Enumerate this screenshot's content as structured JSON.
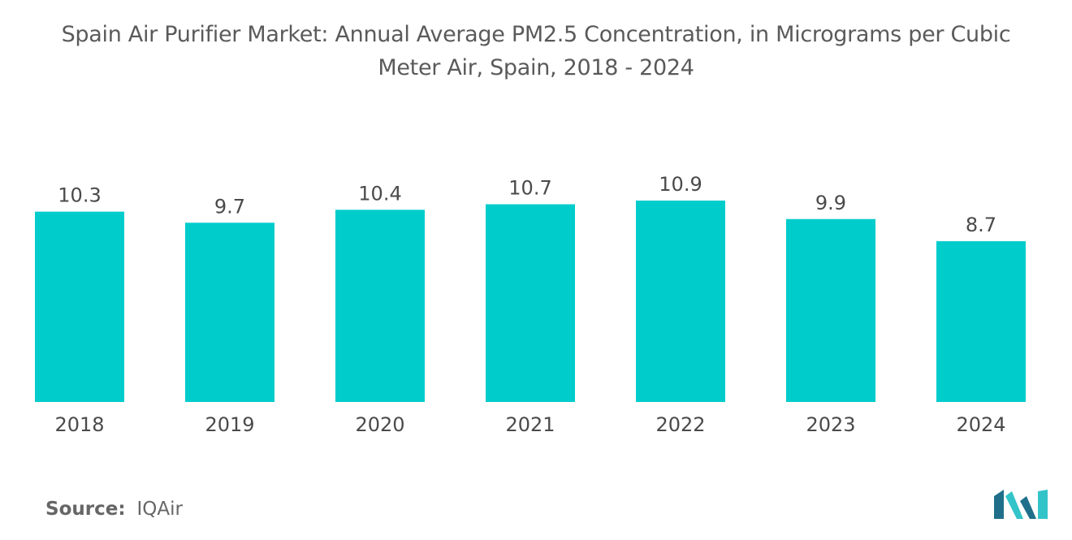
{
  "title": "Spain Air Purifier Market: Annual Average PM2.5 Concentration, in Micrograms per Cubic Meter Air, Spain, 2018 - 2024",
  "chart_data": {
    "type": "bar",
    "title": "Spain Air Purifier Market: Annual Average PM2.5 Concentration, in Micrograms per Cubic Meter Air, Spain, 2018 - 2024",
    "categories": [
      "2018",
      "2019",
      "2020",
      "2021",
      "2022",
      "2023",
      "2024"
    ],
    "values": [
      10.3,
      9.7,
      10.4,
      10.7,
      10.9,
      9.9,
      8.7
    ],
    "value_labels": [
      "10.3",
      "9.7",
      "10.4",
      "10.7",
      "10.9",
      "9.9",
      "8.7"
    ],
    "xlabel": "",
    "ylabel": "",
    "ylim": [
      0,
      10.9
    ],
    "grid": false,
    "bar_color": "#00cccc"
  },
  "source": {
    "label": "Source:",
    "value": "IQAir"
  },
  "colors": {
    "bar": "#00cccc",
    "logo_dark": "#1f6f8b",
    "logo_light": "#33c4c9"
  }
}
